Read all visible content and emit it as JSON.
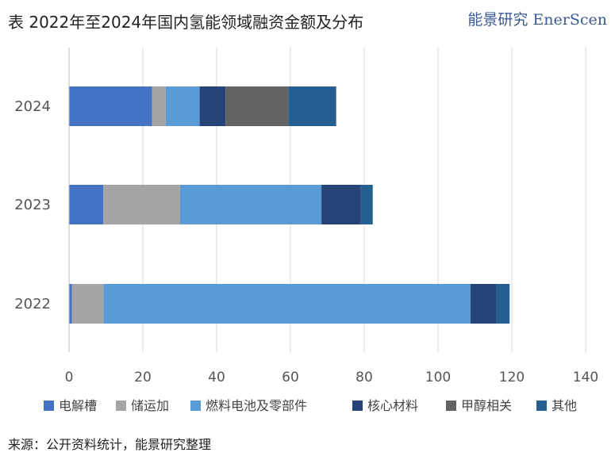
{
  "header": {
    "title": "表 2022年至2024年国内氢能领域融资金额及分布",
    "brand": "能景研究 EnerScen"
  },
  "footer": {
    "source": "来源：公开资料统计，能景研究整理"
  },
  "chart_data": {
    "type": "bar",
    "orientation": "horizontal",
    "stacked": true,
    "title": "",
    "xlabel": "",
    "ylabel": "",
    "xlim": [
      0,
      140
    ],
    "xticks": [
      0,
      20,
      40,
      60,
      80,
      100,
      120,
      140
    ],
    "categories": [
      "2024",
      "2023",
      "2022"
    ],
    "grid": "vertical",
    "legend": "bottom",
    "series": [
      {
        "name": "电解槽",
        "color": "#4472c4",
        "values": [
          22.5,
          9.3,
          0.8
        ]
      },
      {
        "name": "储运加",
        "color": "#a5a5a5",
        "values": [
          3.7,
          20.8,
          8.5
        ]
      },
      {
        "name": "燃料电池及零部件",
        "color": "#5b9bd5",
        "values": [
          9.2,
          38.3,
          99.5
        ]
      },
      {
        "name": "核心材料",
        "color": "#264478",
        "values": [
          7.0,
          10.7,
          7.0
        ]
      },
      {
        "name": "甲醇相关",
        "color": "#636363",
        "values": [
          17.0,
          0.0,
          0.0
        ]
      },
      {
        "name": "其他",
        "color": "#255e91",
        "values": [
          13.0,
          3.2,
          3.6
        ]
      }
    ]
  }
}
